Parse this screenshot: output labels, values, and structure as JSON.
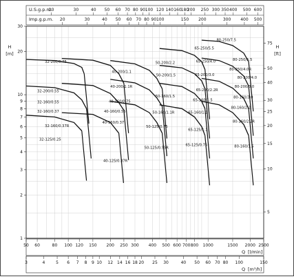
{
  "chart_data": {
    "type": "line",
    "title": "",
    "y_axis": {
      "label": "H",
      "unit_left": "[m]",
      "unit_right": "[ft]",
      "scale": "log",
      "range": [
        1,
        30
      ],
      "ticks_m": [
        1,
        2,
        3,
        4,
        5,
        6,
        7,
        8,
        9,
        10,
        20,
        30
      ],
      "ticks_ft": [
        5,
        10,
        15,
        20,
        25,
        30,
        40,
        50,
        75
      ]
    },
    "x_axes": {
      "us_gpm": {
        "label": "U.S.g.p.m.",
        "ticks": [
          10,
          20,
          30,
          40,
          50,
          60,
          70,
          80,
          90,
          100,
          120,
          140,
          160,
          180,
          200,
          250,
          300,
          350,
          400,
          500,
          600
        ]
      },
      "imp_gpm": {
        "label": "Imp.g.p.m.",
        "ticks": [
          10,
          20,
          30,
          40,
          50,
          60,
          70,
          80,
          90,
          100,
          150,
          200,
          300,
          400,
          500
        ]
      },
      "l_min": {
        "label": "Q",
        "unit": "[l/min]",
        "ticks": [
          50,
          60,
          80,
          100,
          120,
          150,
          200,
          250,
          300,
          400,
          500,
          600,
          700,
          800,
          1000,
          1500,
          2000,
          2500
        ]
      },
      "m3_h": {
        "label": "Q",
        "unit": "[m³/h]",
        "ticks": [
          3,
          4,
          5,
          6,
          7,
          8,
          9,
          10,
          12,
          14,
          16,
          18,
          20,
          25,
          30,
          40,
          50,
          60,
          70,
          80,
          100,
          150
        ]
      }
    },
    "families": [
      {
        "name": "32-200",
        "points": [
          [
            50,
            17.6
          ],
          [
            80,
            17.3
          ],
          [
            110,
            16.5
          ],
          [
            125,
            15.5
          ],
          [
            130,
            14
          ]
        ],
        "labels": [
          {
            "text": "32-200/0.75",
            "at": [
              68,
              16.7
            ]
          },
          {
            "text": "32-200/0.55",
            "at": [
              60,
              10.4
            ]
          }
        ]
      },
      {
        "name": "32-160",
        "points": [
          [
            50,
            11.5
          ],
          [
            80,
            11.2
          ],
          [
            110,
            10.3
          ],
          [
            125,
            9.2
          ],
          [
            135,
            8
          ]
        ],
        "labels": [
          {
            "text": "32-160/0.55",
            "at": [
              60,
              8.7
            ]
          },
          {
            "text": "32-160/0.37",
            "at": [
              60,
              7.5
            ]
          },
          {
            "text": "32-160/0.37R",
            "at": [
              68,
              5.95
            ]
          }
        ]
      },
      {
        "name": "32-125",
        "points": [
          [
            50,
            7.2
          ],
          [
            80,
            7.0
          ],
          [
            110,
            6.4
          ],
          [
            125,
            5.6
          ]
        ],
        "labels": [
          {
            "text": "32-125/0.25",
            "at": [
              62,
              4.8
            ]
          }
        ]
      },
      {
        "name": "40-200",
        "points": [
          [
            90,
            17.9
          ],
          [
            150,
            17.4
          ],
          [
            200,
            16
          ],
          [
            230,
            14
          ],
          [
            250,
            12
          ]
        ],
        "labels": [
          {
            "text": "40-200/1.1",
            "at": [
              205,
              14.2
            ]
          },
          {
            "text": "40-200/1.1R",
            "at": [
              200,
              11.2
            ]
          }
        ]
      },
      {
        "name": "40-160",
        "points": [
          [
            90,
            12
          ],
          [
            150,
            11.6
          ],
          [
            200,
            10.2
          ],
          [
            230,
            8.8
          ],
          [
            250,
            7.8
          ]
        ],
        "labels": [
          {
            "text": "40-160/0.75",
            "at": [
              195,
              8.8
            ]
          },
          {
            "text": "40-160/0.55",
            "at": [
              180,
              7.5
            ]
          },
          {
            "text": "40-160/0.37",
            "at": [
              175,
              6.3
            ]
          }
        ]
      },
      {
        "name": "40-125",
        "points": [
          [
            90,
            7.5
          ],
          [
            150,
            7.3
          ],
          [
            200,
            6.4
          ],
          [
            230,
            5.4
          ]
        ],
        "labels": [
          {
            "text": "40-125/0.37R",
            "at": [
              178,
              3.4
            ]
          }
        ]
      },
      {
        "name": "50-200",
        "points": [
          [
            200,
            17.3
          ],
          [
            300,
            16.4
          ],
          [
            380,
            14.8
          ],
          [
            430,
            13
          ],
          [
            470,
            11
          ]
        ],
        "labels": [
          {
            "text": "50-200/2.2",
            "at": [
              420,
              16.4
            ]
          },
          {
            "text": "50-200/1.5",
            "at": [
              425,
              13.4
            ]
          }
        ]
      },
      {
        "name": "50-160",
        "points": [
          [
            200,
            12.8
          ],
          [
            300,
            12.1
          ],
          [
            380,
            10.8
          ],
          [
            430,
            9.5
          ],
          [
            470,
            8.3
          ]
        ],
        "labels": [
          {
            "text": "50-160/1.5",
            "at": [
              420,
              9.6
            ]
          },
          {
            "text": "50-160/1.1R",
            "at": [
              400,
              7.4
            ]
          }
        ]
      },
      {
        "name": "50-125",
        "points": [
          [
            200,
            9
          ],
          [
            300,
            8.5
          ],
          [
            380,
            7.5
          ],
          [
            430,
            6.4
          ],
          [
            470,
            5.4
          ]
        ],
        "labels": [
          {
            "text": "50-125/0.75",
            "at": [
              360,
              5.9
            ]
          },
          {
            "text": "50-125/0.55R",
            "at": [
              350,
              4.2
            ]
          }
        ]
      },
      {
        "name": "65-250",
        "points": [
          [
            450,
            21
          ],
          [
            650,
            20.3
          ],
          [
            800,
            18.8
          ],
          [
            900,
            17
          ],
          [
            950,
            15
          ]
        ],
        "labels": [
          {
            "text": "65-250/5.5",
            "at": [
              800,
              20.7
            ]
          },
          {
            "text": "65-250/4.0",
            "at": [
              820,
              16.8
            ]
          }
        ]
      },
      {
        "name": "65-200",
        "points": [
          [
            450,
            16
          ],
          [
            650,
            15.4
          ],
          [
            800,
            14
          ],
          [
            900,
            12.5
          ],
          [
            950,
            11
          ]
        ],
        "labels": [
          {
            "text": "65-200/3.0",
            "at": [
              805,
              13.5
            ]
          },
          {
            "text": "65-200/2.2R",
            "at": [
              820,
              10.6
            ]
          }
        ]
      },
      {
        "name": "65-160",
        "points": [
          [
            450,
            12
          ],
          [
            650,
            11.4
          ],
          [
            800,
            10.2
          ],
          [
            900,
            9
          ],
          [
            950,
            8
          ]
        ],
        "labels": [
          {
            "text": "65-160/1.5",
            "at": [
              780,
              9.0
            ]
          },
          {
            "text": "65-160/1.1",
            "at": [
              720,
              7.4
            ]
          }
        ]
      },
      {
        "name": "65-125",
        "points": [
          [
            450,
            8.5
          ],
          [
            650,
            8.0
          ],
          [
            800,
            7.0
          ],
          [
            900,
            6
          ],
          [
            950,
            5.2
          ]
        ],
        "labels": [
          {
            "text": "65-125/1.1",
            "at": [
              720,
              5.6
            ]
          },
          {
            "text": "65-125/0.75",
            "at": [
              690,
              4.4
            ]
          }
        ]
      },
      {
        "name": "80-250",
        "points": [
          [
            900,
            24
          ],
          [
            1200,
            23.5
          ],
          [
            1500,
            22
          ],
          [
            1800,
            19.5
          ],
          [
            1950,
            17
          ]
        ],
        "labels": [
          {
            "text": "80-250/7.5",
            "at": [
              1150,
              23.6
            ]
          },
          {
            "text": "80-250/5.5",
            "at": [
              1500,
              17.2
            ]
          },
          {
            "text": "80-250/4.0R",
            "at": [
              1420,
              14.8
            ]
          }
        ]
      },
      {
        "name": "80-200",
        "points": [
          [
            900,
            18
          ],
          [
            1200,
            17.3
          ],
          [
            1500,
            15.8
          ],
          [
            1800,
            13.5
          ],
          [
            1950,
            11.5
          ]
        ],
        "labels": [
          {
            "text": "80-200/4.0",
            "at": [
              1620,
              12.9
            ]
          },
          {
            "text": "80-200/3.0",
            "at": [
              1550,
              11.2
            ]
          }
        ]
      },
      {
        "name": "80-160",
        "points": [
          [
            900,
            13
          ],
          [
            1200,
            12.4
          ],
          [
            1500,
            11.1
          ],
          [
            1800,
            9.4
          ],
          [
            1950,
            8
          ]
        ],
        "labels": [
          {
            "text": "80-160/3.0",
            "at": [
              1520,
              9.4
            ]
          },
          {
            "text": "80-160/2.2",
            "at": [
              1460,
              8.0
            ]
          },
          {
            "text": "80-160/2.2R",
            "at": [
              1500,
              6.4
            ]
          },
          {
            "text": "80-160/1.5",
            "at": [
              1540,
              4.3
            ]
          }
        ]
      },
      {
        "name": "80-125",
        "points": [
          [
            900,
            9
          ],
          [
            1200,
            8.5
          ],
          [
            1500,
            7.5
          ],
          [
            1800,
            6.2
          ],
          [
            1950,
            5.2
          ]
        ],
        "labels": []
      }
    ]
  }
}
